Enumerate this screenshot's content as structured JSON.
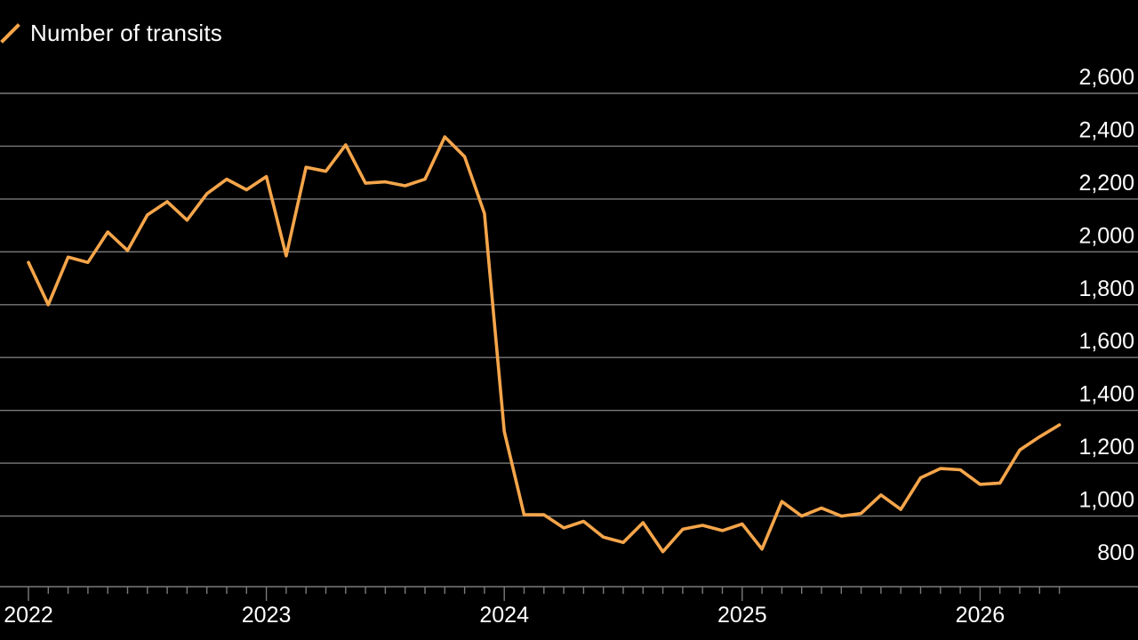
{
  "legend": {
    "label": "Number of transits"
  },
  "colors": {
    "background": "#000000",
    "series": "#f5a54a",
    "grid": "#7a7a7a",
    "text": "#ffffff"
  },
  "chart_data": {
    "type": "line",
    "title": "",
    "xlabel": "",
    "ylabel": "",
    "ylim": [
      800,
      2600
    ],
    "yticks": [
      800,
      1000,
      1200,
      1400,
      1600,
      1800,
      2000,
      2200,
      2400,
      2600
    ],
    "ytick_labels": [
      "800",
      "1,000",
      "1,200",
      "1,400",
      "1,600",
      "1,800",
      "2,000",
      "2,200",
      "2,400",
      "2,600"
    ],
    "y_axis_position": "right",
    "grid": true,
    "legend_position": "top-left",
    "x_tick_labels": [
      "2022",
      "2023",
      "2024",
      "2025",
      "2026"
    ],
    "series": [
      {
        "name": "Number of transits",
        "color": "#f5a54a",
        "x": [
          "2022-01",
          "2022-02",
          "2022-03",
          "2022-04",
          "2022-05",
          "2022-06",
          "2022-07",
          "2022-08",
          "2022-09",
          "2022-10",
          "2022-11",
          "2022-12",
          "2023-01",
          "2023-02",
          "2023-03",
          "2023-04",
          "2023-05",
          "2023-06",
          "2023-07",
          "2023-08",
          "2023-09",
          "2023-10",
          "2023-11",
          "2023-12",
          "2024-01",
          "2024-02",
          "2024-03",
          "2024-04",
          "2024-05",
          "2024-06",
          "2024-07",
          "2024-08",
          "2024-09",
          "2024-10",
          "2024-11",
          "2024-12",
          "2025-01",
          "2025-02",
          "2025-03",
          "2025-04",
          "2025-05",
          "2025-06",
          "2025-07",
          "2025-08",
          "2025-09",
          "2025-10",
          "2025-11",
          "2025-12",
          "2026-01",
          "2026-02",
          "2026-03",
          "2026-04",
          "2026-05"
        ],
        "values": [
          1960,
          1800,
          1980,
          1960,
          2075,
          2005,
          2140,
          2190,
          2120,
          2220,
          2275,
          2235,
          2285,
          1985,
          2320,
          2305,
          2405,
          2260,
          2265,
          2250,
          2275,
          2435,
          2360,
          2145,
          1320,
          1005,
          1005,
          955,
          980,
          920,
          900,
          975,
          865,
          950,
          965,
          945,
          970,
          875,
          1055,
          1000,
          1030,
          1000,
          1010,
          1080,
          1025,
          1145,
          1180,
          1175,
          1120,
          1125,
          1250,
          1300,
          1345
        ]
      }
    ]
  }
}
